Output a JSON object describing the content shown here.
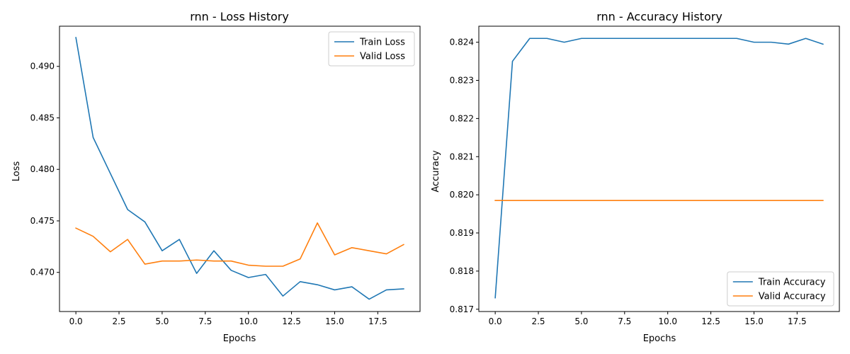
{
  "chart_data": [
    {
      "type": "line",
      "title": "rnn - Loss History",
      "xlabel": "Epochs",
      "ylabel": "Loss",
      "xlim": [
        -0.95,
        19.95
      ],
      "ylim": [
        0.4662,
        0.4939
      ],
      "xticks": [
        0,
        2.5,
        5,
        7.5,
        10,
        12.5,
        15,
        17.5
      ],
      "xtick_labels": [
        "0.0",
        "2.5",
        "5.0",
        "7.5",
        "10.0",
        "12.5",
        "15.0",
        "17.5"
      ],
      "yticks": [
        0.47,
        0.475,
        0.48,
        0.485,
        0.49
      ],
      "ytick_labels": [
        "0.470",
        "0.475",
        "0.480",
        "0.485",
        "0.490"
      ],
      "legend_position": "upper right",
      "grid": false,
      "x": [
        0,
        1,
        2,
        3,
        4,
        5,
        6,
        7,
        8,
        9,
        10,
        11,
        12,
        13,
        14,
        15,
        16,
        17,
        18,
        19
      ],
      "series": [
        {
          "name": "Train Loss",
          "color": "#1f77b4",
          "values": [
            0.4928,
            0.4831,
            0.4796,
            0.4761,
            0.4749,
            0.4721,
            0.4732,
            0.4699,
            0.4721,
            0.4702,
            0.4695,
            0.4698,
            0.4677,
            0.4691,
            0.4688,
            0.4683,
            0.4686,
            0.4674,
            0.4683,
            0.4684
          ]
        },
        {
          "name": "Valid Loss",
          "color": "#ff7f0e",
          "values": [
            0.4743,
            0.4735,
            0.472,
            0.4732,
            0.4708,
            0.4711,
            0.4711,
            0.4712,
            0.4711,
            0.4711,
            0.4707,
            0.4706,
            0.4706,
            0.4713,
            0.4748,
            0.4717,
            0.4724,
            0.4721,
            0.4718,
            0.4727
          ]
        }
      ]
    },
    {
      "type": "line",
      "title": "rnn - Accuracy History",
      "xlabel": "Epochs",
      "ylabel": "Accuracy",
      "xlim": [
        -0.95,
        19.95
      ],
      "ylim": [
        0.81694,
        0.82442
      ],
      "xticks": [
        0,
        2.5,
        5,
        7.5,
        10,
        12.5,
        15,
        17.5
      ],
      "xtick_labels": [
        "0.0",
        "2.5",
        "5.0",
        "7.5",
        "10.0",
        "12.5",
        "15.0",
        "17.5"
      ],
      "yticks": [
        0.817,
        0.818,
        0.819,
        0.82,
        0.821,
        0.822,
        0.823,
        0.824
      ],
      "ytick_labels": [
        "0.817",
        "0.818",
        "0.819",
        "0.820",
        "0.821",
        "0.822",
        "0.823",
        "0.824"
      ],
      "legend_position": "lower right",
      "grid": false,
      "x": [
        0,
        1,
        2,
        3,
        4,
        5,
        6,
        7,
        8,
        9,
        10,
        11,
        12,
        13,
        14,
        15,
        16,
        17,
        18,
        19
      ],
      "series": [
        {
          "name": "Train Accuracy",
          "color": "#1f77b4",
          "values": [
            0.8173,
            0.8235,
            0.8241,
            0.8241,
            0.824,
            0.8241,
            0.8241,
            0.8241,
            0.8241,
            0.8241,
            0.8241,
            0.8241,
            0.8241,
            0.8241,
            0.8241,
            0.824,
            0.824,
            0.82395,
            0.8241,
            0.82395
          ]
        },
        {
          "name": "Valid Accuracy",
          "color": "#ff7f0e",
          "values": [
            0.81985,
            0.81985,
            0.81985,
            0.81985,
            0.81985,
            0.81985,
            0.81985,
            0.81985,
            0.81985,
            0.81985,
            0.81985,
            0.81985,
            0.81985,
            0.81985,
            0.81985,
            0.81985,
            0.81985,
            0.81985,
            0.81985,
            0.81985
          ]
        }
      ]
    }
  ]
}
